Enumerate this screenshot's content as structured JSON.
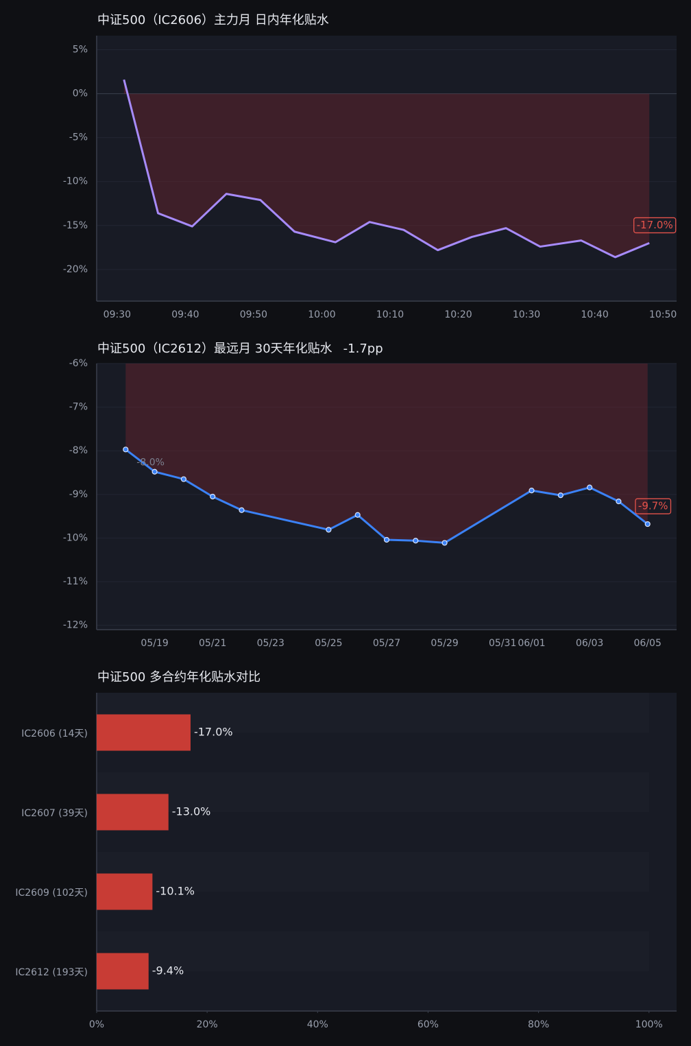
{
  "chart_data": [
    {
      "type": "line",
      "title": "中证500（IC2606）主力月 日内年化贴水",
      "x": [
        "09:31",
        "09:36",
        "09:41",
        "09:46",
        "09:51",
        "09:56",
        "10:02",
        "10:07",
        "10:12",
        "10:17",
        "10:22",
        "10:27",
        "10:32",
        "10:38",
        "10:43",
        "10:48"
      ],
      "series": [
        {
          "color": "#a78bfa",
          "values": [
            1.6,
            -13.6,
            -15.1,
            -11.4,
            -12.1,
            -15.7,
            -16.9,
            -14.6,
            -15.5,
            -17.8,
            -16.3,
            -15.3,
            -17.4,
            -16.7,
            -18.6,
            -17.0
          ],
          "value_labels": [
            null,
            null,
            null,
            null,
            null,
            null,
            null,
            null,
            null,
            null,
            null,
            null,
            null,
            null,
            null,
            "-17.0%"
          ]
        }
      ],
      "markers": false,
      "xlim": [
        "09:27",
        "10:52"
      ],
      "xticks": [
        "09:30",
        "09:40",
        "09:50",
        "10:00",
        "10:10",
        "10:20",
        "10:30",
        "10:40",
        "10:50"
      ],
      "ylim": [
        -23.6,
        6.6
      ],
      "yticks": [
        {
          "value": 5,
          "label": "5%"
        },
        {
          "value": 0,
          "label": "0%"
        },
        {
          "value": -5,
          "label": "-5%"
        },
        {
          "value": -10,
          "label": "-10%"
        },
        {
          "value": -15,
          "label": "-15%"
        },
        {
          "value": -20,
          "label": "-20%"
        }
      ]
    },
    {
      "type": "line",
      "title": "中证500（IC2612）最远月 30天年化贴水",
      "subtitle": "-1.7pp",
      "x": [
        "05/18",
        "05/19",
        "05/20",
        "05/21",
        "05/22",
        "05/25",
        "05/26",
        "05/27",
        "05/28",
        "05/29",
        "06/01",
        "06/02",
        "06/03",
        "06/04",
        "06/05"
      ],
      "series": [
        {
          "color": "#3b82f6",
          "values": [
            -7.97,
            -8.48,
            -8.65,
            -9.05,
            -9.36,
            -9.81,
            -9.47,
            -10.04,
            -10.06,
            -10.11,
            -8.91,
            -9.02,
            -8.84,
            -9.16,
            -9.68
          ],
          "value_labels": [
            "-8.0%",
            null,
            null,
            null,
            null,
            null,
            null,
            null,
            null,
            null,
            null,
            null,
            null,
            null,
            "-9.7%"
          ]
        }
      ],
      "markers": true,
      "xlim": [
        "05/17",
        "06/06"
      ],
      "xticks": [
        "05/19",
        "05/21",
        "05/23",
        "05/25",
        "05/27",
        "05/29",
        "05/31",
        "06/01",
        "06/03",
        "06/05"
      ],
      "ylim": [
        -12.1,
        -6
      ],
      "yticks": [
        {
          "value": -6,
          "label": "-6%"
        },
        {
          "value": -7,
          "label": "-7%"
        },
        {
          "value": -8,
          "label": "-8%"
        },
        {
          "value": -9,
          "label": "-9%"
        },
        {
          "value": -10,
          "label": "-10%"
        },
        {
          "value": -11,
          "label": "-11%"
        },
        {
          "value": -12,
          "label": "-12%"
        }
      ]
    },
    {
      "type": "barh",
      "title": "中证500 多合约年化贴水对比",
      "categories": [
        "IC2606 (14天)",
        "IC2607 (39天)",
        "IC2609 (102天)",
        "IC2612 (193天)"
      ],
      "values": [
        -17.0,
        -13.0,
        -10.1,
        -9.4
      ],
      "value_labels": [
        "-17.0%",
        "-13.0%",
        "-10.1%",
        "-9.4%"
      ],
      "color": "#c83c35",
      "xlim": [
        0,
        105
      ],
      "xticks": [
        {
          "value": 0,
          "label": "0%"
        },
        {
          "value": 20,
          "label": "20%"
        },
        {
          "value": 40,
          "label": "40%"
        },
        {
          "value": 60,
          "label": "60%"
        },
        {
          "value": 80,
          "label": "80%"
        },
        {
          "value": 100,
          "label": "100%"
        }
      ]
    }
  ]
}
